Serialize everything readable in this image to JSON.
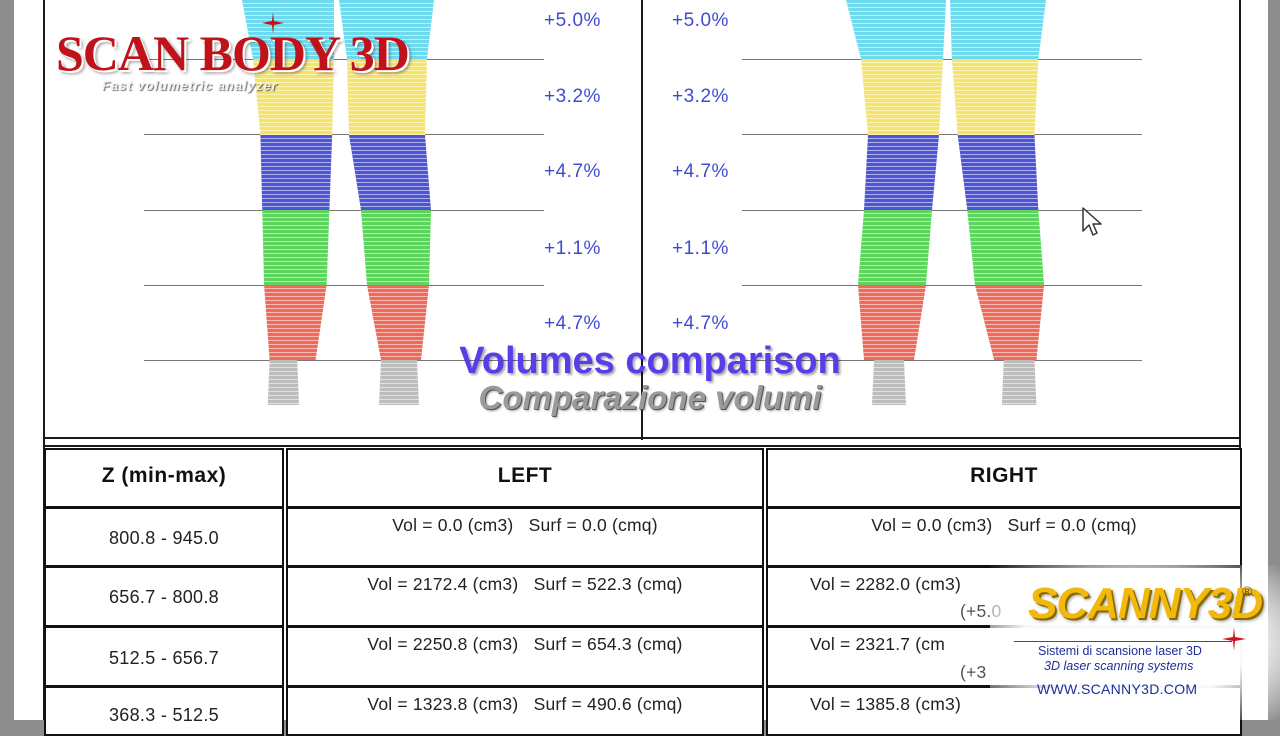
{
  "logo": {
    "brand": "SCAN BODY 3D",
    "tagline": "Fast volumetric analyzer",
    "color": "#c0121a"
  },
  "chart": {
    "left_percentages": [
      "+5.0%",
      "+3.2%",
      "+4.7%",
      "+1.1%",
      "+4.7%"
    ],
    "right_percentages": [
      "+5.0%",
      "+3.2%",
      "+4.7%",
      "+1.1%",
      "+4.7%"
    ],
    "band_colors": [
      "#6fd9ee",
      "#f6e36a",
      "#4d55d6",
      "#5ed35e",
      "#ef6a5a"
    ],
    "label_color": "#3f4bd2"
  },
  "title": {
    "main": "Volumes comparison",
    "sub": "Comparazione volumi"
  },
  "table": {
    "headers": [
      "Z (min-max)",
      "LEFT",
      "RIGHT"
    ],
    "rows": [
      {
        "z": "800.8 - 945.0",
        "left": "Vol = 0.0 (cm3)   Surf = 0.0 (cmq)",
        "right": "Vol = 0.0 (cm3)   Surf = 0.0 (cmq)"
      },
      {
        "z": "656.7 - 800.8",
        "left": "Vol = 2172.4 (cm3)   Surf = 522.3 (cmq)",
        "right": "Vol = 2282.0 (cm3)"
      },
      {
        "z": "512.5 - 656.7",
        "left": "Vol = 2250.8 (cm3)   Surf = 654.3 (cmq)",
        "right": "Vol = 2321.7 (cm"
      },
      {
        "z": "368.3 - 512.5",
        "left": "Vol = 1323.8 (cm3)   Surf = 490.6 (cmq)",
        "right": "Vol = 1385.8 (cm3)"
      }
    ],
    "partial_right_notes": [
      "(+5.0",
      "(+3"
    ]
  },
  "watermark": {
    "brand": "SCANNY3D",
    "registered": "®",
    "line1": "Sistemi di scansione laser 3D",
    "line2": "3D laser scanning systems",
    "url": "WWW.SCANNY3D.COM",
    "brand_color": "#f2b90c"
  }
}
